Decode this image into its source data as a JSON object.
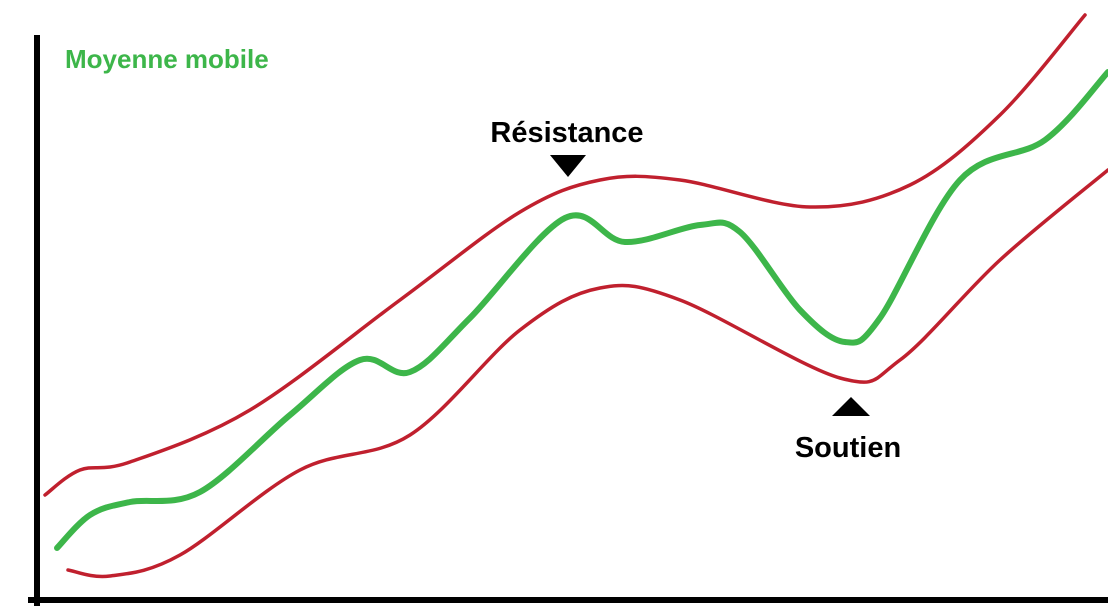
{
  "title": "Moyenne mobile",
  "labels": {
    "resistance": "Résistance",
    "support": "Soutien"
  }
}
